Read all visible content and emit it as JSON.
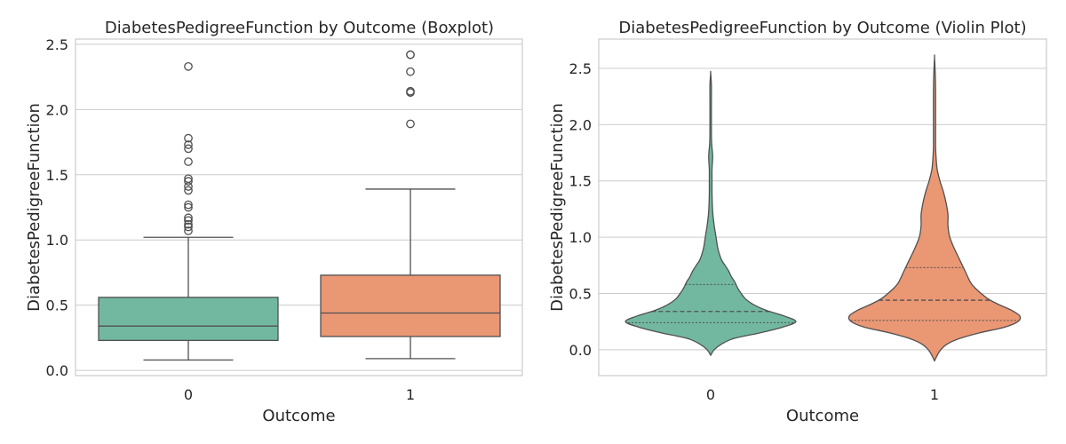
{
  "chart_data": [
    {
      "type": "box",
      "title": "DiabetesPedigreeFunction by Outcome (Boxplot)",
      "xlabel": "Outcome",
      "ylabel": "DiabetesPedigreeFunction",
      "categories": [
        "0",
        "1"
      ],
      "ylim": [
        -0.04,
        2.54
      ],
      "yticks": [
        0.0,
        0.5,
        1.0,
        1.5,
        2.0,
        2.5
      ],
      "ytick_labels": [
        "0.0",
        "0.5",
        "1.0",
        "1.5",
        "2.0",
        "2.5"
      ],
      "grid": true,
      "colors": [
        "#72b8a0",
        "#ea9774"
      ],
      "boxes": [
        {
          "category": "0",
          "whisker_low": 0.08,
          "q1": 0.23,
          "median": 0.34,
          "q3": 0.56,
          "whisker_high": 1.02,
          "outliers": [
            1.07,
            1.1,
            1.12,
            1.15,
            1.17,
            1.25,
            1.27,
            1.38,
            1.41,
            1.45,
            1.47,
            1.6,
            1.7,
            1.73,
            1.78,
            2.33
          ]
        },
        {
          "category": "1",
          "whisker_low": 0.09,
          "q1": 0.26,
          "median": 0.44,
          "q3": 0.73,
          "whisker_high": 1.39,
          "outliers": [
            1.89,
            2.13,
            2.14,
            2.29,
            2.42,
            2.42
          ]
        }
      ]
    },
    {
      "type": "violin",
      "title": "DiabetesPedigreeFunction by Outcome (Violin Plot)",
      "xlabel": "Outcome",
      "ylabel": "DiabetesPedigreeFunction",
      "categories": [
        "0",
        "1"
      ],
      "ylim": [
        -0.23,
        2.76
      ],
      "yticks": [
        0.0,
        0.5,
        1.0,
        1.5,
        2.0,
        2.5
      ],
      "ytick_labels": [
        "0.0",
        "0.5",
        "1.0",
        "1.5",
        "2.0",
        "2.5"
      ],
      "grid": true,
      "colors": [
        "#72b8a0",
        "#ea9774"
      ],
      "violins": [
        {
          "category": "0",
          "quartiles": [
            0.24,
            0.34,
            0.58
          ],
          "profile": [
            [
              -0.05,
              0
            ],
            [
              0.0,
              0.04
            ],
            [
              0.05,
              0.12
            ],
            [
              0.1,
              0.26
            ],
            [
              0.15,
              0.55
            ],
            [
              0.2,
              0.8
            ],
            [
              0.25,
              0.95
            ],
            [
              0.3,
              0.82
            ],
            [
              0.35,
              0.62
            ],
            [
              0.4,
              0.48
            ],
            [
              0.45,
              0.39
            ],
            [
              0.5,
              0.34
            ],
            [
              0.55,
              0.3
            ],
            [
              0.6,
              0.27
            ],
            [
              0.65,
              0.23
            ],
            [
              0.7,
              0.2
            ],
            [
              0.75,
              0.16
            ],
            [
              0.8,
              0.12
            ],
            [
              0.9,
              0.08
            ],
            [
              1.0,
              0.06
            ],
            [
              1.1,
              0.04
            ],
            [
              1.2,
              0.025
            ],
            [
              1.3,
              0.018
            ],
            [
              1.4,
              0.015
            ],
            [
              1.5,
              0.015
            ],
            [
              1.6,
              0.015
            ],
            [
              1.7,
              0.022
            ],
            [
              1.75,
              0.02
            ],
            [
              1.85,
              0.01
            ],
            [
              2.0,
              0.008
            ],
            [
              2.2,
              0.008
            ],
            [
              2.35,
              0.008
            ],
            [
              2.46,
              0
            ]
          ]
        },
        {
          "category": "1",
          "quartiles": [
            0.26,
            0.44,
            0.73
          ],
          "profile": [
            [
              -0.1,
              0
            ],
            [
              -0.05,
              0.03
            ],
            [
              0.0,
              0.07
            ],
            [
              0.05,
              0.14
            ],
            [
              0.1,
              0.28
            ],
            [
              0.15,
              0.5
            ],
            [
              0.2,
              0.78
            ],
            [
              0.25,
              0.93
            ],
            [
              0.3,
              0.95
            ],
            [
              0.35,
              0.86
            ],
            [
              0.4,
              0.72
            ],
            [
              0.45,
              0.6
            ],
            [
              0.5,
              0.52
            ],
            [
              0.55,
              0.45
            ],
            [
              0.6,
              0.4
            ],
            [
              0.7,
              0.34
            ],
            [
              0.8,
              0.28
            ],
            [
              0.9,
              0.22
            ],
            [
              1.0,
              0.17
            ],
            [
              1.1,
              0.15
            ],
            [
              1.2,
              0.15
            ],
            [
              1.3,
              0.13
            ],
            [
              1.4,
              0.1
            ],
            [
              1.5,
              0.06
            ],
            [
              1.6,
              0.03
            ],
            [
              1.7,
              0.018
            ],
            [
              1.8,
              0.012
            ],
            [
              1.9,
              0.012
            ],
            [
              2.1,
              0.012
            ],
            [
              2.3,
              0.012
            ],
            [
              2.45,
              0.008
            ],
            [
              2.6,
              0
            ]
          ]
        }
      ]
    }
  ]
}
